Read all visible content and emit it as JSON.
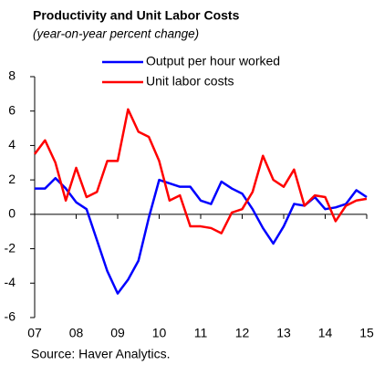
{
  "chart_data": {
    "type": "line",
    "title": "Productivity and Unit Labor Costs",
    "subtitle": "(year-on-year percent change)",
    "source": "Source: Haver Analytics.",
    "x": [
      7,
      7.25,
      7.5,
      7.75,
      8,
      8.25,
      8.5,
      8.75,
      9,
      9.25,
      9.5,
      9.75,
      10,
      10.25,
      10.5,
      10.75,
      11,
      11.25,
      11.5,
      11.75,
      12,
      12.25,
      12.5,
      12.75,
      13,
      13.25,
      13.5,
      13.75,
      14,
      14.25,
      14.5,
      14.75,
      15
    ],
    "series": [
      {
        "name": "Output per hour worked",
        "color": "#0000ff",
        "values": [
          1.5,
          1.5,
          2.1,
          1.5,
          0.7,
          0.3,
          -1.5,
          -3.3,
          -4.6,
          -3.8,
          -2.7,
          -0.2,
          2.0,
          1.8,
          1.6,
          1.6,
          0.8,
          0.6,
          1.9,
          1.5,
          1.2,
          0.3,
          -0.8,
          -1.7,
          -0.7,
          0.6,
          0.5,
          1.0,
          0.3,
          0.4,
          0.6,
          1.4,
          1.0
        ]
      },
      {
        "name": "Unit labor costs",
        "color": "#ff0000",
        "values": [
          3.5,
          4.3,
          3.0,
          0.8,
          2.7,
          1.0,
          1.3,
          3.1,
          3.1,
          6.1,
          4.8,
          4.5,
          3.1,
          0.8,
          1.1,
          -0.7,
          -0.7,
          -0.8,
          -1.1,
          0.1,
          0.3,
          1.3,
          3.4,
          2.0,
          1.6,
          2.6,
          0.5,
          1.1,
          1.0,
          -0.4,
          0.5,
          0.8,
          0.9
        ]
      }
    ],
    "xlim": [
      7,
      15
    ],
    "xticks": [
      {
        "value": 7,
        "label": "07"
      },
      {
        "value": 8,
        "label": "08"
      },
      {
        "value": 9,
        "label": "09"
      },
      {
        "value": 10,
        "label": "10"
      },
      {
        "value": 11,
        "label": "11"
      },
      {
        "value": 12,
        "label": "12"
      },
      {
        "value": 13,
        "label": "13"
      },
      {
        "value": 14,
        "label": "14"
      },
      {
        "value": 15,
        "label": "15"
      }
    ],
    "ylim": [
      -6,
      8
    ],
    "yticks": [
      -6,
      -4,
      -2,
      0,
      2,
      4,
      6,
      8
    ]
  }
}
